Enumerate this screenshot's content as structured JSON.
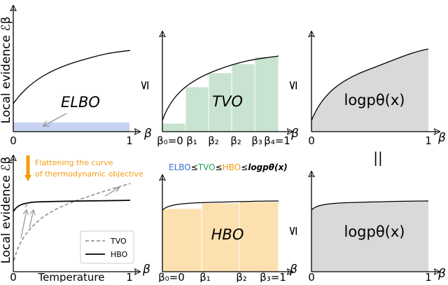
{
  "top_left": {
    "y_label": "Local evidence ℰβ",
    "label": "ELBO",
    "x_ticks": [
      "0",
      "1"
    ],
    "x_label": "β"
  },
  "top_middle": {
    "relation": "≤",
    "label": "TVO",
    "x_ticks": [
      "β₀=0",
      "β₁",
      "β₂",
      "β₂",
      "β₃",
      "β₄=1"
    ],
    "x_label": "β"
  },
  "top_right": {
    "relation": "≤",
    "label": "logpθ(x)",
    "x_ticks": [
      "0",
      "1"
    ],
    "x_label": "β",
    "equals": "||"
  },
  "bottom_left": {
    "y_label": "Local evidence ℰβ",
    "annotation": [
      "Flattening the curve",
      "of thermodynamic objective"
    ],
    "legend": [
      "TVO",
      "HBO"
    ],
    "x_ticks": [
      "0",
      "Temperature",
      "1"
    ],
    "x_label": "β"
  },
  "bottom_middle": {
    "inequality": [
      "ELBO",
      "≤",
      "TVO",
      "≤",
      "HBO",
      "≤",
      "logpθ(x)"
    ],
    "label": "HBO",
    "x_ticks": [
      "β₀=0",
      "β₁",
      "β₂",
      "β₃=1"
    ],
    "x_label": "β"
  },
  "bottom_right": {
    "relation": "≤",
    "label": "logpθ(x)",
    "x_ticks": [
      "0",
      "1"
    ],
    "x_label": "β"
  }
}
